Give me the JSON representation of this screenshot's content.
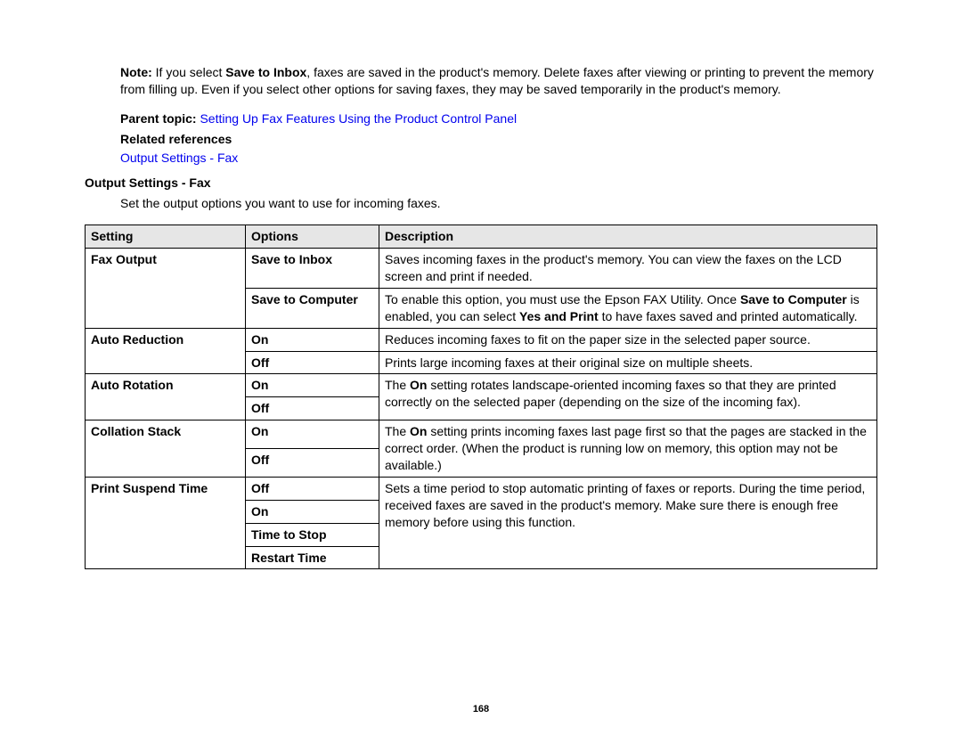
{
  "note": {
    "label": "Note:",
    "before_bold": " If you select ",
    "bold": "Save to Inbox",
    "after_bold": ", faxes are saved in the product's memory. Delete faxes after viewing or printing to prevent the memory from filling up. Even if you select other options for saving faxes, they may be saved temporarily in the product's memory."
  },
  "parent_topic": {
    "label": "Parent topic:",
    "link": "Setting Up Fax Features Using the Product Control Panel"
  },
  "related_refs": {
    "label": "Related references",
    "link": "Output Settings - Fax"
  },
  "section": {
    "heading": "Output Settings - Fax",
    "intro": "Set the output options you want to use for incoming faxes."
  },
  "table": {
    "headers": {
      "setting": "Setting",
      "options": "Options",
      "description": "Description"
    },
    "fax_output": {
      "setting": "Fax Output",
      "opt1": "Save to Inbox",
      "desc1": "Saves incoming faxes in the product's memory. You can view the faxes on the LCD screen and print if needed.",
      "opt2": "Save to Computer",
      "desc2_a": "To enable this option, you must use the Epson FAX Utility. Once ",
      "desc2_bold1": "Save to Computer",
      "desc2_b": " is enabled, you can select ",
      "desc2_bold2": "Yes and Print",
      "desc2_c": " to have faxes saved and printed automatically."
    },
    "auto_reduction": {
      "setting": "Auto Reduction",
      "opt_on": "On",
      "desc_on": "Reduces incoming faxes to fit on the paper size in the selected paper source.",
      "opt_off": "Off",
      "desc_off": "Prints large incoming faxes at their original size on multiple sheets."
    },
    "auto_rotation": {
      "setting": "Auto Rotation",
      "opt_on": "On",
      "opt_off": "Off",
      "desc_a": "The ",
      "desc_bold": "On",
      "desc_b": " setting rotates landscape-oriented incoming faxes so that they are printed correctly on the selected paper (depending on the size of the incoming fax)."
    },
    "collation": {
      "setting": "Collation Stack",
      "opt_on": "On",
      "opt_off": "Off",
      "desc_a": "The ",
      "desc_bold": "On",
      "desc_b": " setting prints incoming faxes last page first so that the pages are stacked in the correct order. (When the product is running low on memory, this option may not be available.)"
    },
    "print_suspend": {
      "setting": "Print Suspend Time",
      "opt_off": "Off",
      "opt_on": "On",
      "opt_time_stop": "Time to Stop",
      "opt_restart": "Restart Time",
      "desc": "Sets a time period to stop automatic printing of faxes or reports. During the time period, received faxes are saved in the product's memory. Make sure there is enough free memory before using this function."
    }
  },
  "page_number": "168"
}
